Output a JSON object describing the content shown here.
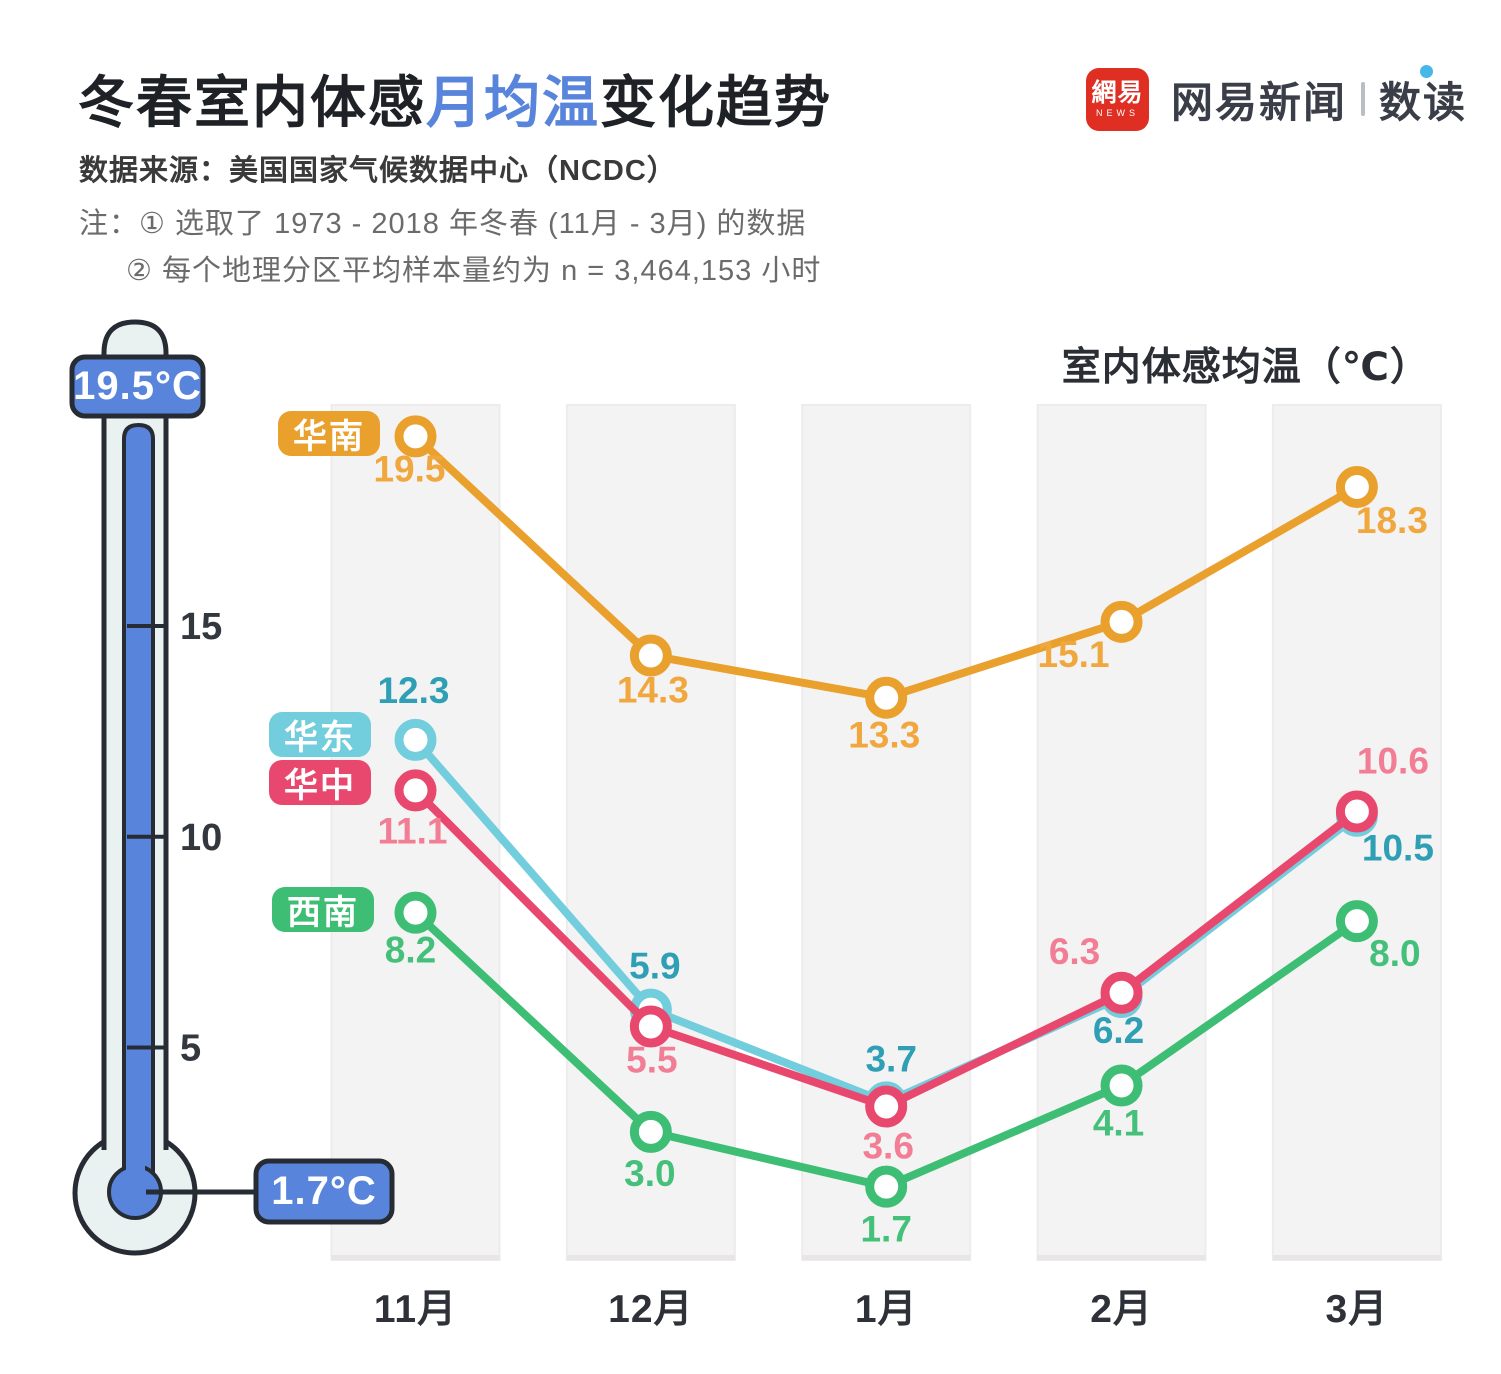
{
  "header": {
    "title_parts": {
      "pre": "冬春室内体感",
      "highlight": "月均温",
      "post": "变化趋势"
    },
    "logo": {
      "mark_text": "網易",
      "mark_sub": "NEWS",
      "brand": "网易新闻",
      "sub_brand": "数读"
    },
    "source": "数据来源：美国国家气候数据中心（NCDC）",
    "notes": [
      "注：① 选取了 1973 - 2018 年冬春 (11月 - 3月) 的数据",
      "② 每个地理分区平均样本量约为 n = 3,464,153 小时"
    ]
  },
  "thermometer": {
    "max_label": "19.5°C",
    "min_label": "1.7°C",
    "ticks": [
      {
        "value": 15,
        "label": "15"
      },
      {
        "value": 10,
        "label": "10"
      },
      {
        "value": 5,
        "label": "5"
      }
    ],
    "fluid_color": "#5885DB",
    "outline_color": "#272B33",
    "glass_color": "#E9F1F1"
  },
  "chart_data": {
    "type": "line",
    "title": "室内体感均温（℃）",
    "categories": [
      "11月",
      "12月",
      "1月",
      "2月",
      "3月"
    ],
    "ylim": [
      0,
      20.3
    ],
    "grid": "vertical-month-bands",
    "legend_position": "badges left of first data points",
    "band_color": "#F4F3F3",
    "series": [
      {
        "name": "华南",
        "color": "#E9A02C",
        "text_color": "#F0A73E",
        "values": [
          19.5,
          14.3,
          13.3,
          15.1,
          18.3
        ],
        "label_offsets": [
          [
            -6,
            45
          ],
          [
            2,
            47
          ],
          [
            -2,
            50
          ],
          [
            -48,
            45
          ],
          [
            35,
            46
          ]
        ]
      },
      {
        "name": "华东",
        "color": "#72CDDC",
        "text_color": "#2E9FB4",
        "values": [
          12.3,
          5.9,
          3.7,
          6.2,
          10.5
        ],
        "label_offsets": [
          [
            -2,
            -37
          ],
          [
            4,
            -31
          ],
          [
            5,
            -31
          ],
          [
            -3,
            46
          ],
          [
            41,
            45
          ]
        ]
      },
      {
        "name": "华中",
        "color": "#E9486E",
        "text_color": "#F27E95",
        "values": [
          11.1,
          5.5,
          3.6,
          6.3,
          10.6
        ],
        "label_offsets": [
          [
            -3,
            53
          ],
          [
            1,
            46
          ],
          [
            2,
            52
          ],
          [
            -47,
            -29
          ],
          [
            36,
            -38
          ]
        ]
      },
      {
        "name": "西南",
        "color": "#3EBE74",
        "text_color": "#45C07A",
        "values": [
          8.2,
          3.0,
          1.7,
          4.1,
          8.0
        ],
        "label_offsets": [
          [
            -5,
            50
          ],
          [
            -1,
            54
          ],
          [
            0,
            55
          ],
          [
            -3,
            50
          ],
          [
            38,
            45
          ]
        ]
      }
    ]
  }
}
